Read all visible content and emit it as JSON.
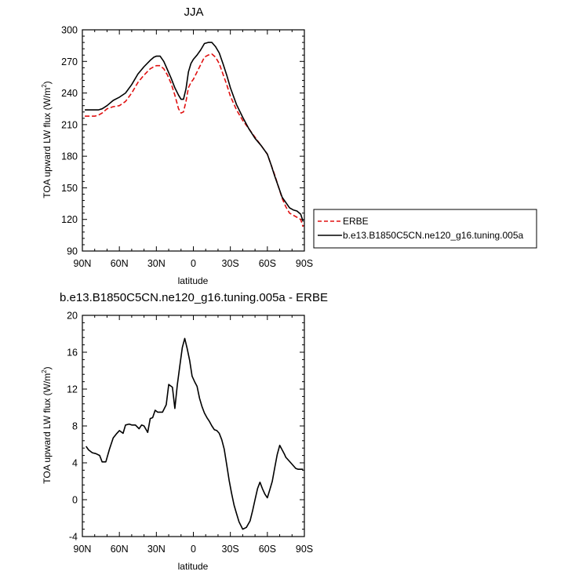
{
  "chart_data": [
    {
      "type": "line",
      "title": "JJA",
      "xlabel": "",
      "ylabel": "TOA upward LW flux (W/m",
      "ylabel_sup": "2",
      "ylabel_close": ")",
      "xlim": [
        90,
        -90
      ],
      "ylim": [
        90,
        300
      ],
      "yticks": [
        90,
        120,
        150,
        180,
        210,
        240,
        270,
        300
      ],
      "xticks": [
        90,
        60,
        30,
        0,
        -30,
        -60,
        -90
      ],
      "xtick_labels": [
        "90N",
        "60N",
        "30N",
        "0",
        "30S",
        "60S",
        "90S"
      ],
      "legend_position": "right",
      "series": [
        {
          "name": "ERBE",
          "color": "#e01010",
          "dash": true,
          "x": [
            88,
            85,
            80,
            77,
            74,
            70,
            65,
            60,
            55,
            50,
            45,
            40,
            35,
            32,
            30,
            27,
            24,
            21,
            18,
            15,
            12,
            10,
            8,
            6,
            4,
            2,
            0,
            -3,
            -6,
            -9,
            -12,
            -15,
            -18,
            -21,
            -24,
            -27,
            -30,
            -35,
            -40,
            -45,
            -50,
            -55,
            -60,
            -63,
            -66,
            -69,
            -72,
            -75,
            -78,
            -81,
            -84,
            -87,
            -89
          ],
          "y": [
            218,
            218,
            218,
            219,
            221,
            225,
            227,
            228,
            232,
            240,
            250,
            257,
            263,
            265,
            266,
            266,
            263,
            257,
            249,
            238,
            225,
            221,
            222,
            232,
            245,
            250,
            253,
            260,
            267,
            274,
            276,
            277,
            274,
            268,
            258,
            248,
            237,
            224,
            214,
            206,
            198,
            190,
            182,
            172,
            162,
            151,
            140,
            132,
            126,
            124,
            122,
            120,
            113
          ]
        },
        {
          "name": "b.e13.B1850C5CN.ne120_g16.tuning.005a",
          "color": "#000000",
          "dash": false,
          "x": [
            88,
            85,
            80,
            77,
            74,
            70,
            65,
            60,
            55,
            50,
            45,
            40,
            35,
            32,
            30,
            27,
            24,
            21,
            18,
            15,
            12,
            10,
            8,
            6,
            4,
            2,
            0,
            -3,
            -6,
            -9,
            -12,
            -15,
            -18,
            -21,
            -24,
            -27,
            -30,
            -35,
            -40,
            -45,
            -50,
            -55,
            -60,
            -63,
            -66,
            -69,
            -72,
            -75,
            -78,
            -81,
            -84,
            -87,
            -89
          ],
          "y": [
            224,
            224,
            224,
            224,
            225,
            228,
            233,
            236,
            240,
            248,
            258,
            265,
            271,
            274,
            275,
            275,
            270,
            262,
            254,
            245,
            238,
            234,
            234,
            244,
            260,
            268,
            272,
            276,
            281,
            287,
            288,
            288,
            284,
            278,
            268,
            257,
            245,
            229,
            217,
            206,
            197,
            190,
            182,
            172,
            161,
            151,
            141,
            136,
            131,
            129,
            128,
            125,
            118
          ]
        }
      ]
    },
    {
      "type": "line",
      "title": "b.e13.B1850C5CN.ne120_g16.tuning.005a - ERBE",
      "xlabel": "latitude",
      "ylabel": "TOA upward LW flux (W/m",
      "ylabel_sup": "2",
      "ylabel_close": ")",
      "xlim": [
        90,
        -90
      ],
      "ylim": [
        -4,
        20
      ],
      "yticks": [
        -4,
        0,
        4,
        8,
        12,
        16,
        20
      ],
      "xticks": [
        90,
        60,
        30,
        0,
        -30,
        -60,
        -90
      ],
      "xtick_labels": [
        "90N",
        "60N",
        "30N",
        "0",
        "30S",
        "60S",
        "90S"
      ],
      "series": [
        {
          "color": "#000000",
          "x": [
            87,
            85,
            82,
            79,
            76,
            74,
            71,
            68,
            65,
            62,
            60,
            57,
            55,
            52,
            50,
            47,
            44,
            42,
            40,
            37,
            35,
            33,
            31,
            29,
            27,
            25,
            22,
            20,
            17,
            15,
            13,
            11,
            9,
            7,
            5,
            3,
            1,
            -1,
            -3,
            -5,
            -7,
            -9,
            -11,
            -13,
            -15,
            -17,
            -19,
            -21,
            -23,
            -25,
            -27,
            -29,
            -31,
            -33,
            -35,
            -37,
            -40,
            -43,
            -46,
            -48,
            -50,
            -52,
            -54,
            -56,
            -58,
            -60,
            -62,
            -64,
            -66,
            -68,
            -70,
            -72,
            -74,
            -75,
            -77,
            -79,
            -81,
            -83,
            -85,
            -87,
            -89
          ],
          "y": [
            5.8,
            5.4,
            5.1,
            5.0,
            4.8,
            4.1,
            4.1,
            5.5,
            6.7,
            7.2,
            7.5,
            7.2,
            8.1,
            8.2,
            8.1,
            8.1,
            7.7,
            8.1,
            8.0,
            7.3,
            8.8,
            8.9,
            9.7,
            9.5,
            9.5,
            9.5,
            10.3,
            12.5,
            12.2,
            9.9,
            12.5,
            14.5,
            16.5,
            17.5,
            16.4,
            15.1,
            13.4,
            12.8,
            12.3,
            11.0,
            10.1,
            9.4,
            8.9,
            8.5,
            8.0,
            7.6,
            7.5,
            7.2,
            6.5,
            5.5,
            3.8,
            2.1,
            0.7,
            -0.6,
            -1.5,
            -2.4,
            -3.2,
            -3.0,
            -2.3,
            -1.2,
            0.0,
            1.2,
            1.9,
            1.2,
            0.6,
            0.2,
            1.1,
            2.0,
            3.5,
            4.9,
            5.9,
            5.4,
            4.9,
            4.6,
            4.3,
            4.0,
            3.7,
            3.4,
            3.3,
            3.3,
            3.3
          ]
        }
      ]
    }
  ]
}
